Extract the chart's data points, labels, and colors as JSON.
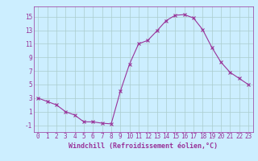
{
  "x": [
    0,
    1,
    2,
    3,
    4,
    5,
    6,
    7,
    8,
    9,
    10,
    11,
    12,
    13,
    14,
    15,
    16,
    17,
    18,
    19,
    20,
    21,
    22,
    23
  ],
  "y": [
    3,
    2.5,
    2,
    1,
    0.5,
    -0.5,
    -0.5,
    -0.7,
    -0.8,
    4,
    8,
    11,
    11.5,
    12.9,
    14.4,
    15.2,
    15.3,
    14.8,
    13.1,
    10.5,
    8.3,
    6.8,
    5.9,
    5.0
  ],
  "line_color": "#993399",
  "marker": "x",
  "marker_size": 3,
  "bg_color": "#cceeff",
  "grid_color": "#aacccc",
  "xlabel": "Windchill (Refroidissement éolien,°C)",
  "xlabel_fontsize": 6,
  "ylabel_ticks": [
    -1,
    1,
    3,
    5,
    7,
    9,
    11,
    13,
    15
  ],
  "xticks": [
    0,
    1,
    2,
    3,
    4,
    5,
    6,
    7,
    8,
    9,
    10,
    11,
    12,
    13,
    14,
    15,
    16,
    17,
    18,
    19,
    20,
    21,
    22,
    23
  ],
  "ylim": [
    -2,
    16.5
  ],
  "xlim": [
    -0.5,
    23.5
  ],
  "tick_fontsize": 5.5
}
